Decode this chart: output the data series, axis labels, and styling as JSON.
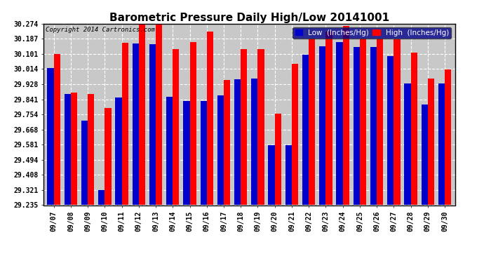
{
  "title": "Barometric Pressure Daily High/Low 20141001",
  "copyright": "Copyright 2014 Cartronics.com",
  "legend_low": "Low  (Inches/Hg)",
  "legend_high": "High  (Inches/Hg)",
  "dates": [
    "09/07",
    "09/08",
    "09/09",
    "09/10",
    "09/11",
    "09/12",
    "09/13",
    "09/14",
    "09/15",
    "09/16",
    "09/17",
    "09/18",
    "09/19",
    "09/20",
    "09/21",
    "09/22",
    "09/23",
    "09/24",
    "09/25",
    "09/26",
    "09/27",
    "09/28",
    "09/29",
    "09/30"
  ],
  "low_values": [
    30.02,
    29.87,
    29.72,
    29.32,
    29.85,
    30.16,
    30.155,
    29.855,
    29.83,
    29.83,
    29.865,
    29.955,
    29.96,
    29.58,
    29.58,
    30.095,
    30.145,
    30.17,
    30.14,
    30.14,
    30.09,
    29.93,
    29.81,
    29.93
  ],
  "high_values": [
    30.1,
    29.88,
    29.87,
    29.79,
    30.165,
    30.27,
    30.27,
    30.13,
    30.17,
    30.23,
    29.95,
    30.13,
    30.13,
    29.76,
    30.045,
    30.19,
    30.23,
    30.26,
    30.19,
    30.19,
    30.185,
    30.11,
    29.96,
    30.01
  ],
  "ylim_min": 29.235,
  "ylim_max": 30.274,
  "yticks": [
    29.235,
    29.321,
    29.408,
    29.494,
    29.581,
    29.668,
    29.754,
    29.841,
    29.928,
    30.014,
    30.101,
    30.187,
    30.274
  ],
  "bar_width": 0.38,
  "low_color": "#0000cc",
  "high_color": "#ff0000",
  "bg_color": "#c8c8c8",
  "grid_color": "#ffffff",
  "title_fontsize": 11,
  "copyright_fontsize": 6.5,
  "tick_fontsize": 7,
  "legend_fontsize": 7.5
}
